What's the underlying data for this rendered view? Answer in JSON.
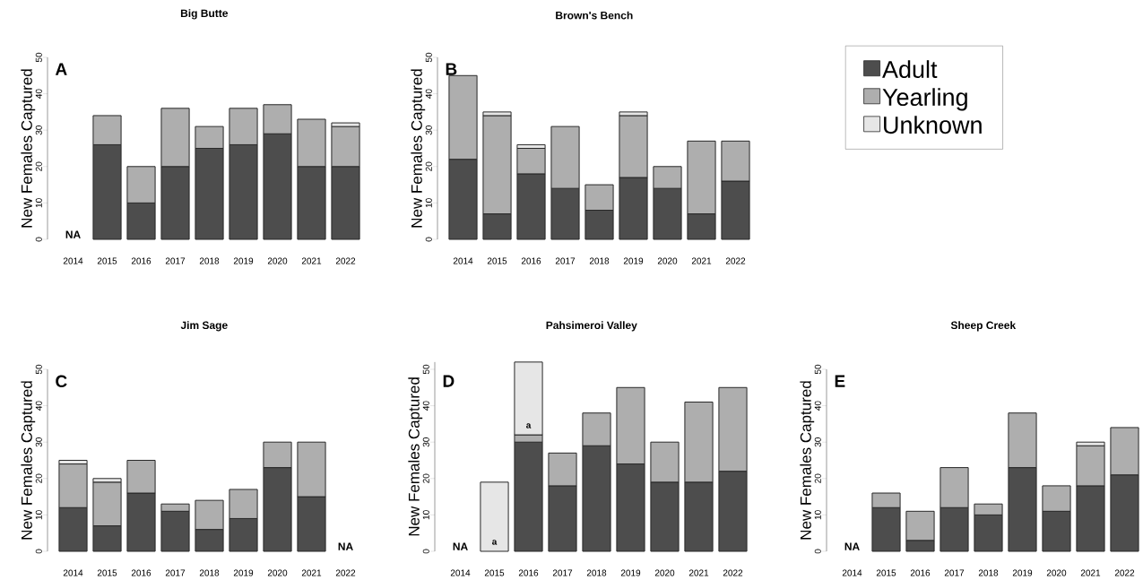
{
  "chart_data": [
    {
      "type": "bar",
      "stacked": true,
      "title": "Big Butte",
      "ylabel": "New Females Captured",
      "categories": [
        "2014",
        "2015",
        "2016",
        "2017",
        "2018",
        "2019",
        "2020",
        "2021",
        "2022"
      ],
      "ylim": [
        0,
        50
      ],
      "yticks": [
        0,
        10,
        20,
        30,
        40,
        50
      ],
      "series": [
        {
          "color": "#4d4d4d",
          "values": [
            null,
            26,
            10,
            20,
            25,
            26,
            29,
            20,
            20
          ]
        },
        {
          "color": "#aeaeae",
          "values": [
            null,
            8,
            10,
            16,
            6,
            10,
            8,
            13,
            11
          ]
        },
        {
          "color": "#e6e6e6",
          "values": [
            null,
            null,
            null,
            null,
            null,
            null,
            null,
            null,
            1
          ]
        }
      ],
      "annotations": [
        "A",
        "NA"
      ]
    },
    {
      "type": "bar",
      "stacked": true,
      "title": "Brown's Bench",
      "ylabel": "New Females Captured",
      "categories": [
        "2014",
        "2015",
        "2016",
        "2017",
        "2018",
        "2019",
        "2020",
        "2021",
        "2022"
      ],
      "ylim": [
        0,
        50
      ],
      "yticks": [
        0,
        10,
        20,
        30,
        40,
        50
      ],
      "legend": "right",
      "series": [
        {
          "name": "Adult",
          "color": "#4d4d4d",
          "values": [
            22,
            7,
            18,
            14,
            8,
            17,
            14,
            7,
            16
          ]
        },
        {
          "name": "Yearling",
          "color": "#aeaeae",
          "values": [
            23,
            27,
            7,
            17,
            7,
            17,
            6,
            20,
            11
          ]
        },
        {
          "name": "Unknown",
          "color": "#e6e6e6",
          "values": [
            null,
            1,
            1,
            null,
            null,
            1,
            null,
            null,
            null
          ]
        }
      ],
      "annotations": [
        "B"
      ]
    },
    {
      "type": "bar",
      "stacked": true,
      "title": "Jim Sage",
      "ylabel": "New Females Captured",
      "categories": [
        "2014",
        "2015",
        "2016",
        "2017",
        "2018",
        "2019",
        "2020",
        "2021",
        "2022"
      ],
      "ylim": [
        0,
        50
      ],
      "yticks": [
        0,
        10,
        20,
        30,
        40,
        50
      ],
      "series": [
        {
          "color": "#4d4d4d",
          "values": [
            12,
            7,
            16,
            11,
            6,
            9,
            23,
            15,
            null
          ]
        },
        {
          "color": "#aeaeae",
          "values": [
            12,
            12,
            9,
            2,
            8,
            8,
            7,
            15,
            null
          ]
        },
        {
          "color": "#e6e6e6",
          "values": [
            1,
            1,
            null,
            null,
            null,
            null,
            null,
            null,
            null
          ]
        }
      ],
      "annotations": [
        "C",
        "NA"
      ]
    },
    {
      "type": "bar",
      "stacked": true,
      "title": "Pahsimeroi Valley",
      "ylabel": "New Females Captured",
      "categories": [
        "2014",
        "2015",
        "2016",
        "2017",
        "2018",
        "2019",
        "2020",
        "2021",
        "2022"
      ],
      "ylim": [
        0,
        52
      ],
      "yticks": [
        0,
        10,
        20,
        30,
        40,
        50
      ],
      "series": [
        {
          "color": "#4d4d4d",
          "values": [
            null,
            null,
            30,
            18,
            29,
            24,
            19,
            19,
            22
          ]
        },
        {
          "color": "#aeaeae",
          "values": [
            null,
            null,
            2,
            9,
            9,
            21,
            11,
            22,
            23
          ]
        },
        {
          "color": "#e6e6e6",
          "values": [
            null,
            19,
            20,
            null,
            null,
            null,
            null,
            null,
            null
          ]
        }
      ],
      "annotations": [
        "D",
        "NA",
        "a",
        "a"
      ]
    },
    {
      "type": "bar",
      "stacked": true,
      "title": "Sheep Creek",
      "ylabel": "New Females Captured",
      "categories": [
        "2014",
        "2015",
        "2016",
        "2017",
        "2018",
        "2019",
        "2020",
        "2021",
        "2022"
      ],
      "ylim": [
        0,
        50
      ],
      "yticks": [
        0,
        10,
        20,
        30,
        40,
        50
      ],
      "series": [
        {
          "color": "#4d4d4d",
          "values": [
            null,
            12,
            3,
            12,
            10,
            23,
            11,
            18,
            21
          ]
        },
        {
          "color": "#aeaeae",
          "values": [
            null,
            4,
            8,
            11,
            3,
            15,
            7,
            11,
            13
          ]
        },
        {
          "color": "#e6e6e6",
          "values": [
            null,
            null,
            null,
            null,
            null,
            null,
            null,
            1,
            null
          ]
        }
      ],
      "annotations": [
        "E",
        "NA"
      ]
    }
  ]
}
